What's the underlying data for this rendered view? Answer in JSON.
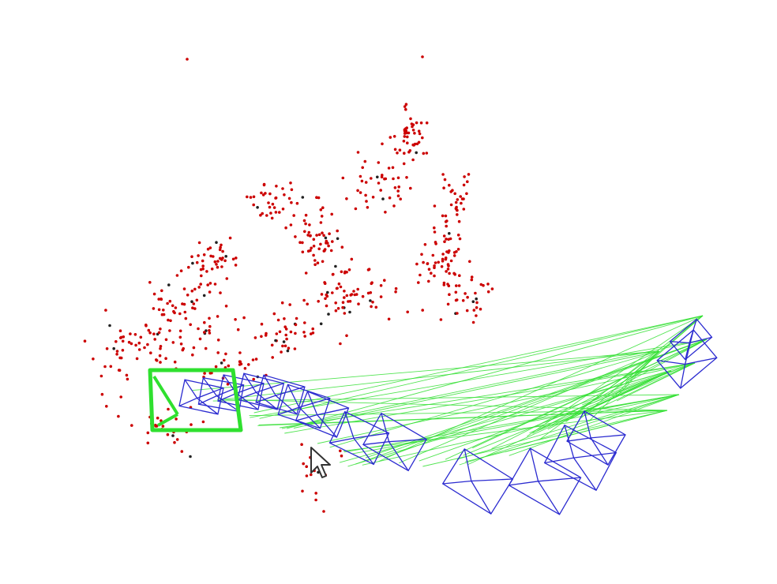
{
  "window": {
    "title": ""
  },
  "colors": {
    "background": "#ffffff",
    "map_points": "#cc0000",
    "map_points_dark": "#222222",
    "camera_frames": "#2b2bd0",
    "current_frame": "#2fe02f",
    "matches": "#35e035",
    "cursor_fill": "#ffffff",
    "cursor_stroke": "#333333"
  },
  "icons": {
    "cursor": "mouse-pointer-icon"
  }
}
